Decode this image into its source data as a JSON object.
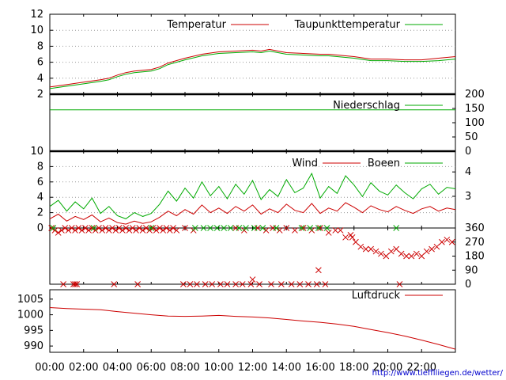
{
  "chart_data": [
    {
      "type": "line",
      "panel": "temperature",
      "x_range": [
        0,
        24
      ],
      "ylim": [
        2,
        12
      ],
      "yticks": [
        "2",
        "4",
        "6",
        "8",
        "10",
        "12"
      ],
      "grid": true,
      "legend_position": "top",
      "series": [
        {
          "name": "Temperatur",
          "color": "#cc0000",
          "x": [
            0,
            1,
            2,
            3,
            3.5,
            4,
            4.5,
            5,
            6,
            6.5,
            7,
            8,
            9,
            10,
            11,
            12,
            12.5,
            13,
            13.5,
            14,
            15,
            16,
            16.5,
            17,
            18,
            19,
            20,
            21,
            22,
            23,
            24
          ],
          "y": [
            2.9,
            3.2,
            3.5,
            3.8,
            4.0,
            4.4,
            4.7,
            4.9,
            5.1,
            5.4,
            5.9,
            6.5,
            7.0,
            7.3,
            7.4,
            7.5,
            7.4,
            7.6,
            7.4,
            7.2,
            7.1,
            7.0,
            7.0,
            6.9,
            6.7,
            6.4,
            6.4,
            6.3,
            6.3,
            6.5,
            6.7
          ]
        },
        {
          "name": "Taupunkttemperatur",
          "color": "#00aa00",
          "x": [
            0,
            1,
            2,
            3,
            3.5,
            4,
            4.5,
            5,
            6,
            6.5,
            7,
            8,
            9,
            10,
            11,
            12,
            12.5,
            13,
            13.5,
            14,
            15,
            16,
            16.5,
            17,
            18,
            19,
            20,
            21,
            22,
            23,
            24
          ],
          "y": [
            2.7,
            3.0,
            3.3,
            3.6,
            3.8,
            4.2,
            4.5,
            4.7,
            4.9,
            5.2,
            5.7,
            6.3,
            6.8,
            7.1,
            7.2,
            7.3,
            7.2,
            7.4,
            7.2,
            7.0,
            6.9,
            6.8,
            6.8,
            6.7,
            6.5,
            6.2,
            6.2,
            6.1,
            6.1,
            6.2,
            6.4
          ]
        }
      ]
    },
    {
      "type": "line",
      "panel": "precipitation",
      "x_range": [
        0,
        24
      ],
      "ylim": [
        0,
        200
      ],
      "yticks_right": [
        "0",
        "50",
        "100",
        "150",
        "200"
      ],
      "series": [
        {
          "name": "Niederschlag",
          "color": "#00aa00",
          "x": [
            0,
            24
          ],
          "y": [
            145,
            145
          ]
        }
      ]
    },
    {
      "type": "line",
      "panel": "wind",
      "x_range": [
        0,
        24
      ],
      "ylim": [
        0,
        10
      ],
      "yticks": [
        "0",
        "2",
        "4",
        "6",
        "8",
        "10"
      ],
      "yticks_right": [
        "3",
        "4"
      ],
      "grid": true,
      "series": [
        {
          "name": "Wind",
          "color": "#cc0000",
          "x": [
            0,
            0.5,
            1,
            1.5,
            2,
            2.5,
            3,
            3.5,
            4,
            4.5,
            5,
            5.5,
            6,
            6.5,
            7,
            7.5,
            8,
            8.5,
            9,
            9.5,
            10,
            10.5,
            11,
            11.5,
            12,
            12.5,
            13,
            13.5,
            14,
            14.5,
            15,
            15.5,
            16,
            16.5,
            17,
            17.5,
            18,
            18.5,
            19,
            19.5,
            20,
            20.5,
            21,
            21.5,
            22,
            22.5,
            23,
            23.5,
            24
          ],
          "y": [
            1.2,
            1.8,
            0.9,
            1.5,
            1.1,
            1.7,
            0.8,
            1.3,
            0.7,
            0.5,
            0.9,
            0.6,
            0.8,
            1.4,
            2.2,
            1.6,
            2.4,
            1.8,
            3.0,
            2.0,
            2.6,
            1.9,
            2.8,
            2.2,
            3.0,
            1.8,
            2.5,
            2.0,
            3.1,
            2.3,
            2.0,
            3.2,
            1.9,
            2.6,
            2.2,
            3.3,
            2.7,
            2.0,
            2.9,
            2.4,
            2.1,
            2.8,
            2.3,
            1.9,
            2.5,
            2.8,
            2.2,
            2.6,
            2.4
          ]
        },
        {
          "name": "Boeen",
          "color": "#00aa00",
          "x": [
            0,
            0.5,
            1,
            1.5,
            2,
            2.5,
            3,
            3.5,
            4,
            4.5,
            5,
            5.5,
            6,
            6.5,
            7,
            7.5,
            8,
            8.5,
            9,
            9.5,
            10,
            10.5,
            11,
            11.5,
            12,
            12.5,
            13,
            13.5,
            14,
            14.5,
            15,
            15.5,
            16,
            16.5,
            17,
            17.5,
            18,
            18.5,
            19,
            19.5,
            20,
            20.5,
            21,
            21.5,
            22,
            22.5,
            23,
            23.5,
            24
          ],
          "y": [
            2.8,
            3.6,
            2.2,
            3.4,
            2.5,
            3.9,
            1.9,
            2.8,
            1.6,
            1.2,
            2.0,
            1.5,
            1.9,
            3.1,
            4.8,
            3.5,
            5.2,
            3.9,
            6.0,
            4.2,
            5.4,
            3.8,
            5.7,
            4.4,
            6.2,
            3.7,
            5.0,
            4.1,
            6.3,
            4.6,
            5.2,
            7.1,
            3.9,
            5.4,
            4.5,
            6.8,
            5.6,
            4.1,
            5.9,
            4.8,
            4.3,
            5.6,
            4.6,
            3.8,
            5.1,
            5.7,
            4.4,
            5.3,
            5.1
          ]
        }
      ]
    },
    {
      "type": "scatter",
      "panel": "wind-direction",
      "x_range": [
        0,
        24
      ],
      "ylim": [
        0,
        360
      ],
      "yticks_right": [
        "0",
        "90",
        "180",
        "270",
        "360"
      ],
      "series": [
        {
          "name": "",
          "color": "#cc0000",
          "marker": "x",
          "x": [
            0.1,
            0.3,
            0.5,
            0.7,
            0.9,
            1.1,
            1.3,
            1.5,
            1.7,
            1.9,
            2.1,
            2.3,
            2.5,
            2.7,
            2.9,
            3.1,
            3.3,
            3.5,
            3.7,
            3.9,
            4.1,
            4.3,
            4.5,
            4.7,
            4.9,
            5.1,
            5.3,
            5.5,
            5.7,
            5.9,
            6.1,
            6.3,
            6.5,
            6.7,
            6.9,
            7.1,
            7.3,
            7.5,
            8.0,
            8.5,
            11.0,
            11.5,
            12.3,
            12.8,
            13.2,
            13.6,
            14.0,
            14.5,
            15.0,
            15.5,
            16.0,
            16.5,
            16.9,
            17.2,
            17.5,
            17.8,
            18.1,
            18.4,
            18.7,
            19.0,
            19.3,
            19.6,
            19.9,
            20.2,
            20.5,
            20.8,
            21.1,
            21.4,
            21.7,
            22.0,
            22.3,
            22.6,
            22.9,
            23.2,
            23.5,
            23.8,
            0.8,
            1.5,
            3.8,
            5.2,
            7.9,
            8.3,
            8.7,
            9.2,
            9.6,
            10.1,
            10.5,
            11.0,
            11.4,
            11.9,
            12.4,
            13.1,
            13.7,
            14.3,
            14.8,
            15.3,
            15.8,
            16.3,
            1.4,
            1.6,
            20.7,
            12.0,
            15.9,
            17.9
          ],
          "y": [
            360,
            345,
            330,
            345,
            360,
            345,
            360,
            345,
            360,
            345,
            360,
            345,
            360,
            345,
            360,
            345,
            360,
            345,
            360,
            345,
            360,
            345,
            360,
            345,
            360,
            345,
            360,
            345,
            360,
            345,
            360,
            345,
            360,
            345,
            360,
            345,
            360,
            345,
            360,
            345,
            360,
            345,
            360,
            345,
            360,
            345,
            360,
            345,
            360,
            345,
            360,
            330,
            345,
            345,
            300,
            315,
            270,
            240,
            225,
            225,
            210,
            195,
            180,
            210,
            225,
            195,
            180,
            180,
            195,
            180,
            210,
            225,
            240,
            270,
            285,
            270,
            0,
            0,
            0,
            0,
            0,
            0,
            0,
            0,
            0,
            0,
            0,
            0,
            0,
            0,
            0,
            0,
            0,
            0,
            0,
            0,
            0,
            0,
            0,
            0,
            0,
            30,
            90,
            300
          ]
        },
        {
          "name": "",
          "color": "#00aa00",
          "marker": "x",
          "x": [
            0.2,
            2.6,
            6.0,
            8.6,
            9.1,
            9.5,
            9.9,
            10.3,
            10.7,
            11.2,
            11.6,
            12.1,
            12.6,
            13.4,
            14.9,
            15.4,
            15.9,
            16.4,
            20.5
          ],
          "y": [
            360,
            360,
            360,
            360,
            360,
            360,
            360,
            360,
            360,
            360,
            360,
            360,
            360,
            360,
            360,
            360,
            360,
            360,
            360
          ]
        }
      ]
    },
    {
      "type": "line",
      "panel": "pressure",
      "x_range": [
        0,
        24
      ],
      "ylim": [
        988,
        1008
      ],
      "yticks": [
        "990",
        "995",
        "1000",
        "1005"
      ],
      "xticks": [
        "00:00",
        "02:00",
        "04:00",
        "06:00",
        "08:00",
        "10:00",
        "12:00",
        "14:00",
        "16:00",
        "18:00",
        "20:00",
        "22:00"
      ],
      "series": [
        {
          "name": "Luftdruck",
          "color": "#cc0000",
          "x": [
            0,
            1,
            2,
            3,
            4,
            5,
            6,
            7,
            8,
            9,
            10,
            11,
            12,
            13,
            14,
            15,
            16,
            17,
            18,
            19,
            20,
            21,
            22,
            23,
            24
          ],
          "y": [
            1002.3,
            1002.0,
            1001.8,
            1001.6,
            1001.0,
            1000.5,
            1000.0,
            999.6,
            999.5,
            999.6,
            999.8,
            999.5,
            999.3,
            999.0,
            998.5,
            998.0,
            997.6,
            997.0,
            996.3,
            995.3,
            994.3,
            993.2,
            991.9,
            990.5,
            989.0
          ]
        }
      ]
    }
  ],
  "footer": {
    "url": "http://www.tiefflliegen.de/wetter/"
  }
}
